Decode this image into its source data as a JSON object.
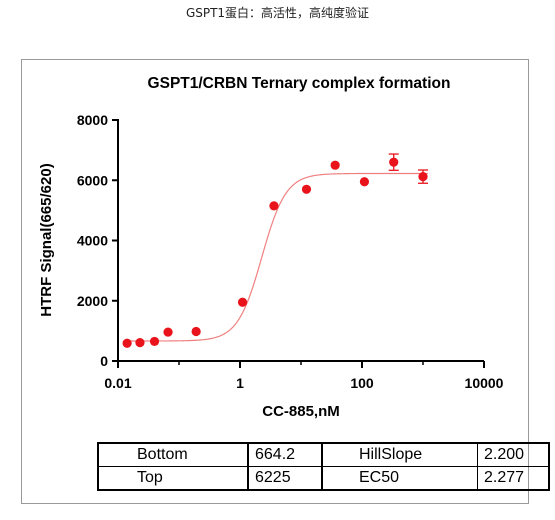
{
  "header": {
    "caption": "GSPT1蛋白：高活性，高纯度验证"
  },
  "chart_data": {
    "type": "scatter",
    "title": "GSPT1/CRBN Ternary complex formation",
    "xlabel": "CC-885,nM",
    "ylabel": "HTRF Signal(665/620)",
    "xscale": "log",
    "xlim": [
      0.01,
      10000
    ],
    "ylim": [
      0,
      8000
    ],
    "xticks": [
      0.01,
      1,
      100,
      10000
    ],
    "xtick_labels": [
      "0.01",
      "1",
      "100",
      "10000"
    ],
    "yticks": [
      0,
      2000,
      4000,
      6000,
      8000
    ],
    "ytick_labels": [
      "0",
      "2000",
      "4000",
      "6000",
      "8000"
    ],
    "grid": false,
    "marker_color": "#e8131b",
    "curve_color": "#f08080",
    "points": [
      {
        "x": 0.0141,
        "y": 590
      },
      {
        "x": 0.0229,
        "y": 610
      },
      {
        "x": 0.0397,
        "y": 650
      },
      {
        "x": 0.0661,
        "y": 960
      },
      {
        "x": 0.191,
        "y": 980
      },
      {
        "x": 1.1,
        "y": 1950
      },
      {
        "x": 3.6,
        "y": 5150
      },
      {
        "x": 12.3,
        "y": 5700
      },
      {
        "x": 36.3,
        "y": 6500
      },
      {
        "x": 109.6,
        "y": 5950
      },
      {
        "x": 331.1,
        "y": 6600,
        "err": 270
      },
      {
        "x": 1000,
        "y": 6120,
        "err": 220
      }
    ],
    "fit": {
      "model": "four-parameter logistic",
      "bottom": 664.2,
      "top": 6225,
      "hillslope": 2.2,
      "ec50": 2.277
    }
  },
  "table": {
    "rows": [
      [
        "Bottom",
        "664.2",
        "HillSlope",
        "2.200"
      ],
      [
        "Top",
        "6225",
        "EC50",
        "2.277"
      ]
    ]
  }
}
